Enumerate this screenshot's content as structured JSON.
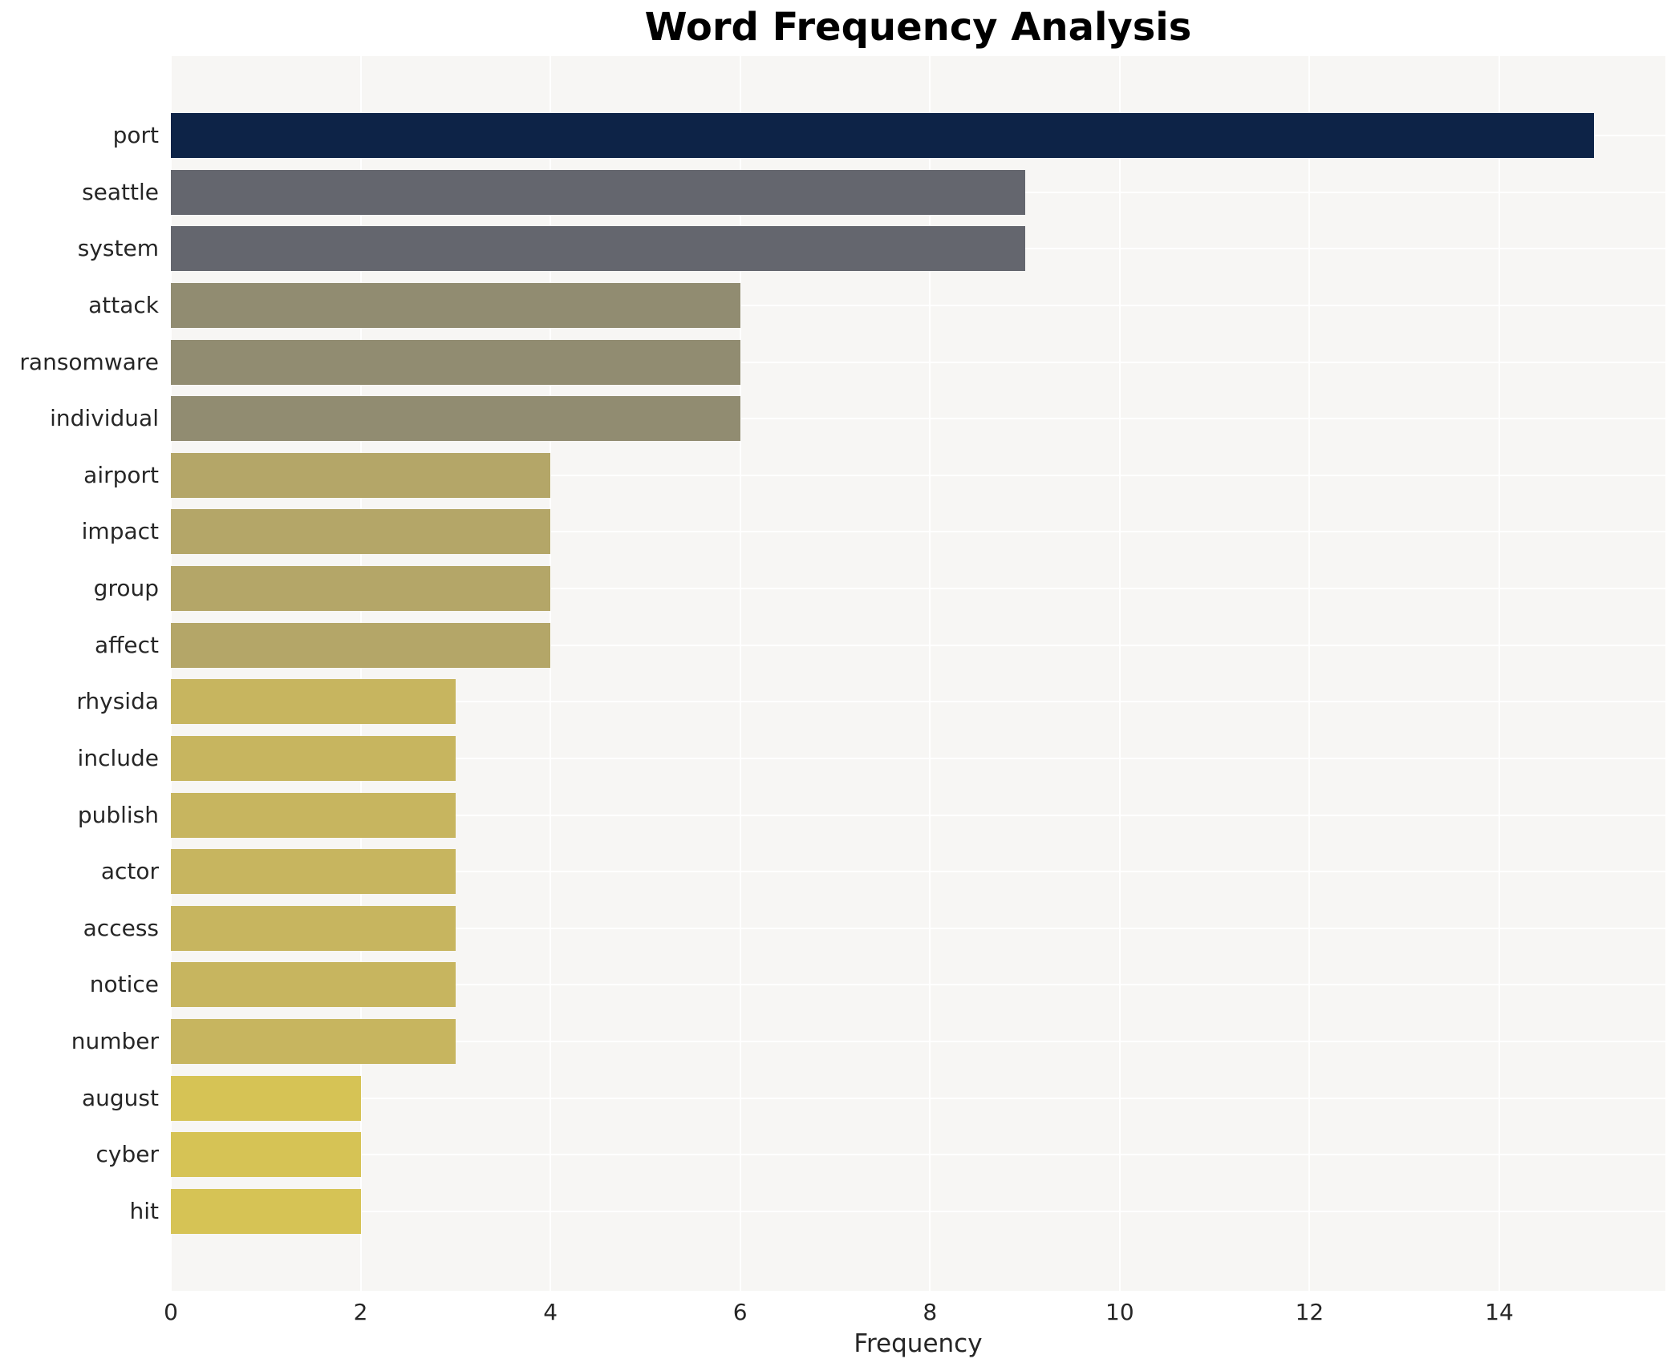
{
  "chart_data": {
    "type": "bar",
    "orientation": "horizontal",
    "title": "Word Frequency Analysis",
    "xlabel": "Frequency",
    "ylabel": "",
    "categories": [
      "port",
      "seattle",
      "system",
      "attack",
      "ransomware",
      "individual",
      "airport",
      "impact",
      "group",
      "affect",
      "rhysida",
      "include",
      "publish",
      "actor",
      "access",
      "notice",
      "number",
      "august",
      "cyber",
      "hit"
    ],
    "values": [
      15,
      9,
      9,
      6,
      6,
      6,
      4,
      4,
      4,
      4,
      3,
      3,
      3,
      3,
      3,
      3,
      3,
      2,
      2,
      2
    ],
    "bar_colors": [
      "#0d2347",
      "#64666e",
      "#64666e",
      "#918c71",
      "#918c71",
      "#918c71",
      "#b4a668",
      "#b4a668",
      "#b4a668",
      "#b4a668",
      "#c7b55f",
      "#c7b55f",
      "#c7b55f",
      "#c7b55f",
      "#c7b55f",
      "#c7b55f",
      "#c7b55f",
      "#d6c355",
      "#d6c355",
      "#d6c355"
    ],
    "xticks": [
      0,
      2,
      4,
      6,
      8,
      10,
      12,
      14
    ],
    "xlim": [
      0,
      15.75
    ],
    "grid": true,
    "legend_visible": false,
    "plot_background": "#f7f6f4",
    "figure_background": "#ffffff",
    "gridline_color": "#ffffff",
    "tick_label_color": "#262626",
    "title_color": "#000000"
  }
}
